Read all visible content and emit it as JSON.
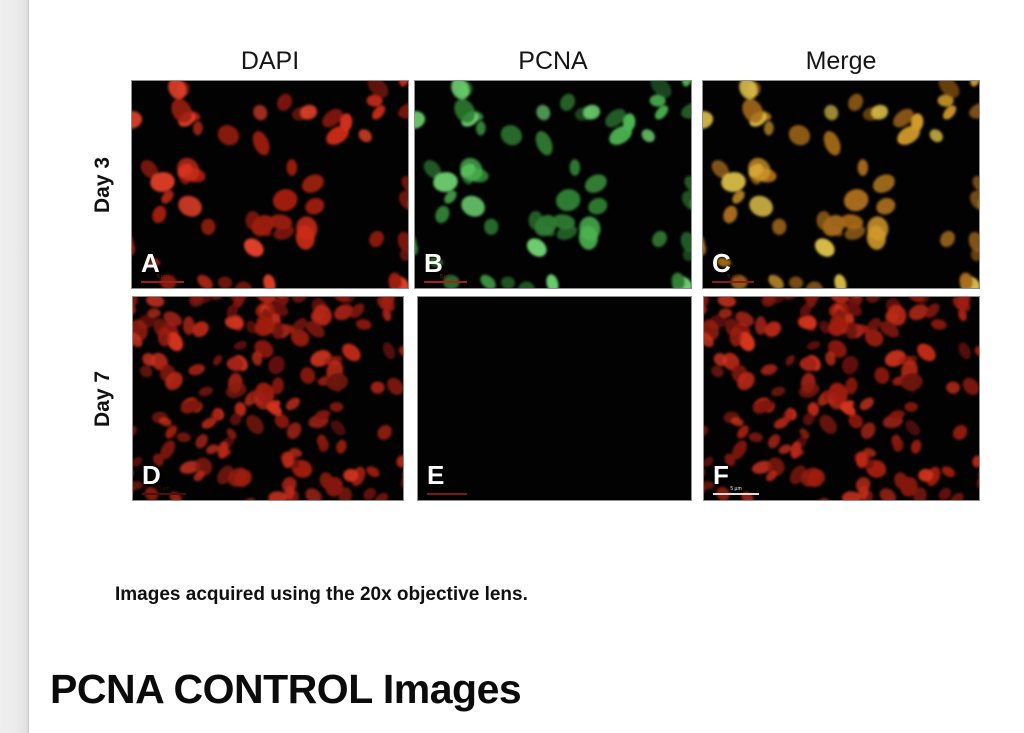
{
  "page": {
    "title": "PCNA CONTROL Images"
  },
  "figure": {
    "caption": "Images acquired using the 20x objective lens.",
    "column_headers": [
      {
        "label": "DAPI"
      },
      {
        "label": "PCNA"
      },
      {
        "label": "Merge"
      }
    ],
    "row_labels": [
      {
        "label": "Day 3"
      },
      {
        "label": "Day 7"
      }
    ],
    "panels": [
      {
        "letter": "A",
        "row": "Day 3",
        "channel": "DAPI",
        "seed": 13,
        "count": 60,
        "cell_min": 7,
        "cell_max": 13,
        "palette": [
          "#7f170e",
          "#9e1d11",
          "#b82414",
          "#cf2d1a",
          "#e44129"
        ],
        "scale_bar": {
          "label": "5 µm",
          "bar_color": "#9b201a",
          "text_color": "#8a1a12",
          "width": 43
        }
      },
      {
        "letter": "B",
        "row": "Day 3",
        "channel": "PCNA",
        "seed": 13,
        "count": 60,
        "cell_min": 7,
        "cell_max": 13,
        "palette": [
          "#245f27",
          "#2f7c33",
          "#3d9a41",
          "#4cb551",
          "#6fd472"
        ],
        "scale_bar": {
          "label": "5 µm",
          "bar_color": "#a0221a",
          "text_color": "#8a1a12",
          "width": 43
        }
      },
      {
        "letter": "C",
        "row": "Day 3",
        "channel": "Merge",
        "seed": 13,
        "count": 60,
        "cell_min": 7,
        "cell_max": 13,
        "palette": [
          "#8a5715",
          "#a76a1a",
          "#bf7f20",
          "#d29a2b",
          "#ddc04a"
        ],
        "scale_bar": {
          "label": "5 µm",
          "bar_color": "#8c1c12",
          "text_color": "#8a1a12",
          "width": 42
        }
      },
      {
        "letter": "D",
        "row": "Day 7",
        "channel": "DAPI",
        "seed": 47,
        "count": 155,
        "cell_min": 6,
        "cell_max": 11,
        "palette": [
          "#69120b",
          "#86180e",
          "#a01f12",
          "#ba2817",
          "#d0331e"
        ],
        "scale_bar": {
          "label": "5 µm",
          "bar_color": "#4e0f09",
          "text_color": "#3f0c08",
          "width": 44
        }
      },
      {
        "letter": "E",
        "row": "Day 7",
        "channel": "PCNA",
        "seed": 5,
        "count": 0,
        "cell_min": 6,
        "cell_max": 11,
        "palette": [
          "#000000"
        ],
        "scale_bar": {
          "label": "",
          "bar_color": "#7c1a12",
          "text_color": "#7c1a12",
          "width": 40
        }
      },
      {
        "letter": "F",
        "row": "Day 7",
        "channel": "Merge",
        "seed": 47,
        "count": 155,
        "cell_min": 6,
        "cell_max": 11,
        "palette": [
          "#69120b",
          "#86180e",
          "#a21f12",
          "#bc2917",
          "#d2341e"
        ],
        "scale_bar": {
          "label": "5 µm",
          "bar_color": "#dedede",
          "text_color": "#eaeaea",
          "width": 46
        }
      }
    ]
  }
}
